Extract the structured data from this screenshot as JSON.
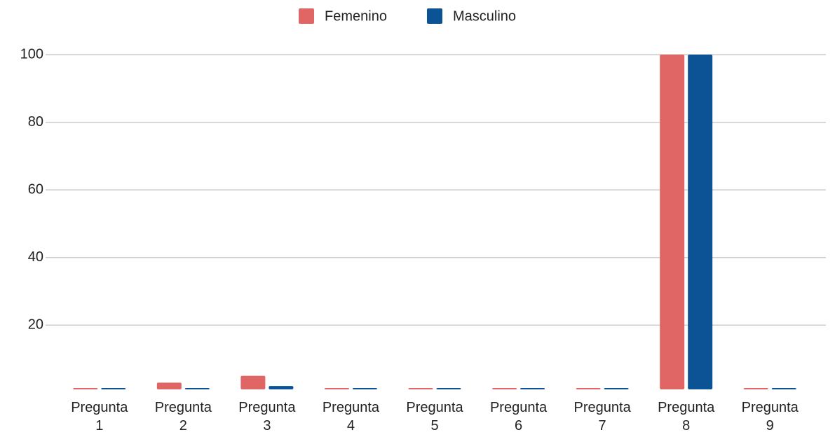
{
  "chart_data": {
    "type": "bar",
    "categories": [
      "Pregunta 1",
      "Pregunta 2",
      "Pregunta 3",
      "Pregunta 4",
      "Pregunta 5",
      "Pregunta 6",
      "Pregunta 7",
      "Pregunta 8",
      "Pregunta 9"
    ],
    "series": [
      {
        "name": "Femenino",
        "color": "#e06666",
        "values": [
          1,
          3,
          5,
          1,
          1,
          1,
          1,
          100,
          1
        ]
      },
      {
        "name": "Masculino",
        "color": "#0b5394",
        "values": [
          1,
          1,
          2,
          1,
          1,
          1,
          1,
          100,
          1
        ]
      }
    ],
    "ylim": [
      1,
      100
    ],
    "yticks": [
      20,
      40,
      60,
      80,
      100
    ],
    "grid": true,
    "legend": "top"
  }
}
